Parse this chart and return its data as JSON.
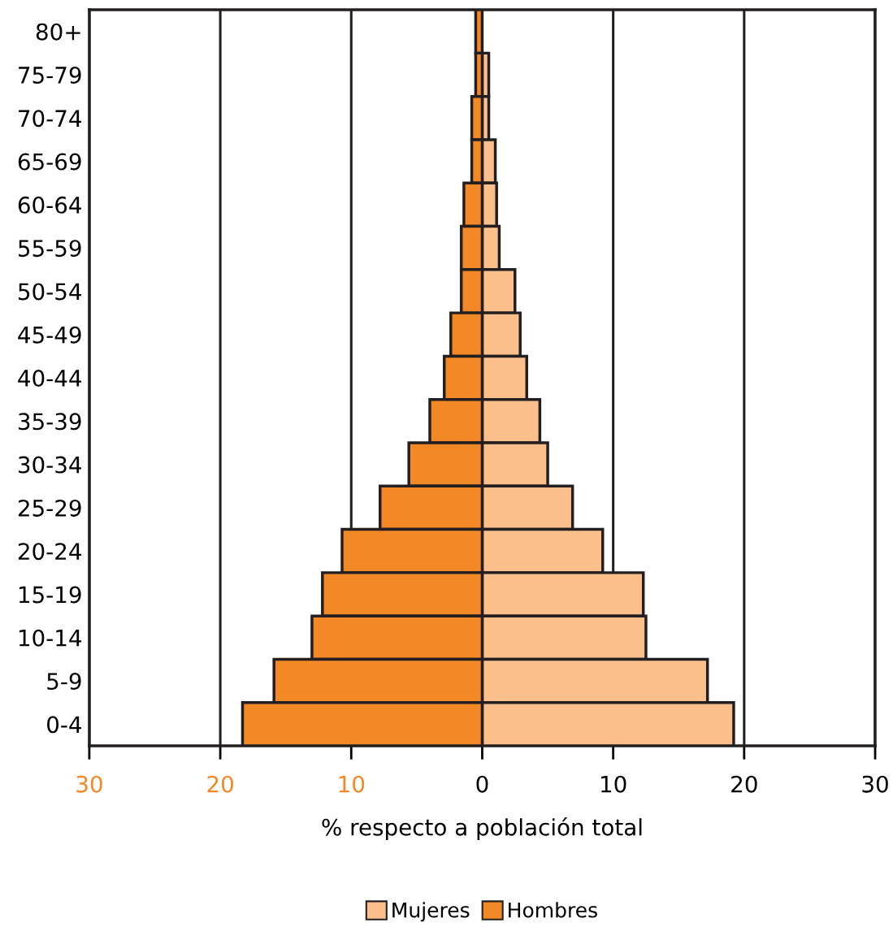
{
  "chart_data": {
    "type": "bar",
    "orientation": "horizontal",
    "xlabel": "% respecto a población total",
    "categories": [
      "80+",
      "75-79",
      "70-74",
      "65-69",
      "60-64",
      "55-59",
      "50-54",
      "45-49",
      "40-44",
      "35-39",
      "30-34",
      "25-29",
      "20-24",
      "15-19",
      "10-14",
      "5-9",
      "0-4"
    ],
    "series": [
      {
        "name": "Mujeres",
        "color": "#fbbf8c",
        "values": [
          null,
          0.5,
          0.5,
          1.0,
          1.1,
          1.3,
          2.5,
          2.9,
          3.4,
          4.4,
          5.0,
          6.9,
          9.2,
          12.3,
          12.5,
          17.2,
          19.2
        ]
      },
      {
        "name": "Hombres",
        "color": "#f38827",
        "values": [
          -0.5,
          -0.5,
          -0.8,
          -0.8,
          -1.4,
          -1.6,
          -1.6,
          -2.4,
          -2.9,
          -4.0,
          -5.6,
          -7.8,
          -10.7,
          -12.2,
          -13.0,
          -15.9,
          -18.3
        ]
      }
    ],
    "xlim": [
      -30,
      30
    ],
    "xticks": [
      {
        "value": -30,
        "label": "30"
      },
      {
        "value": -20,
        "label": "20"
      },
      {
        "value": -10,
        "label": "10"
      },
      0,
      10,
      20,
      30
    ],
    "grid": "x",
    "legend": "bottom",
    "stacked": true
  }
}
